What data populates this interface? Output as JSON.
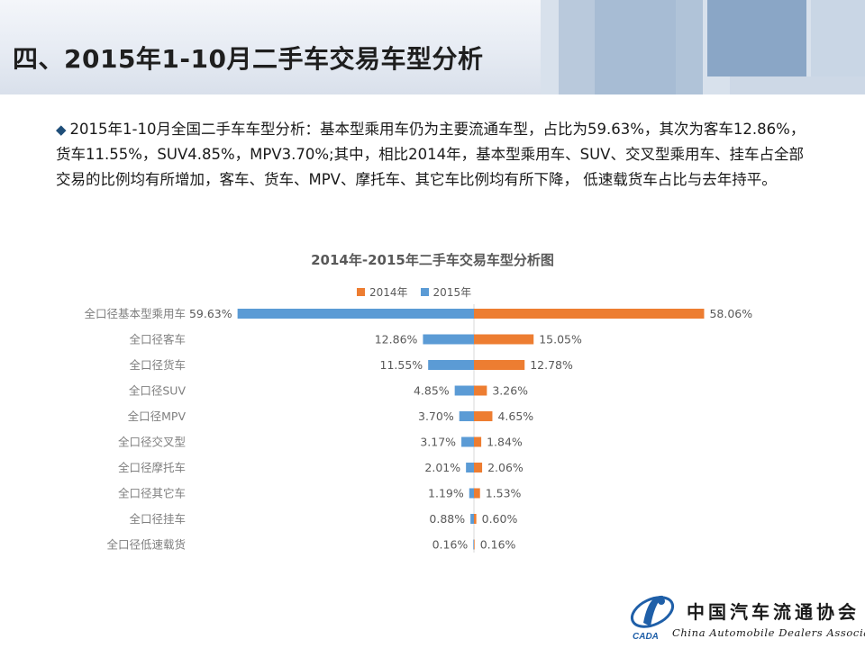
{
  "slide": {
    "title": "四、2015年1-10月二手车交易车型分析",
    "description": "2015年1-10月全国二手车车型分析：基本型乘用车仍为主要流通车型，占比为59.63%，其次为客车12.86%，货车11.55%，SUV4.85%，MPV3.70%;其中，相比2014年，基本型乘用车、SUV、交叉型乘用车、挂车占全部交易的比例均有所增加，客车、货车、MPV、摩托车、其它车比例均有所下降， 低速载货车占比与去年持平。",
    "bullet_icon": "diamond-bullet-icon"
  },
  "logo": {
    "name_cn": "中国汽车流通协会",
    "name_en": "China Automobile Dealers Association",
    "emblem_text": "CADA"
  },
  "colors": {
    "series_2014": "#ed7d31",
    "series_2015": "#5b9bd5",
    "title_text": "#1f1f1f",
    "header_bg": "#e6ebf3"
  },
  "chart_data": {
    "type": "bar",
    "orientation": "horizontal-butterfly",
    "title": "2014年-2015年二手车交易车型分析图",
    "legend_position": "top",
    "categories": [
      "全口径基本型乘用车",
      "全口径客车",
      "全口径货车",
      "全口径SUV",
      "全口径MPV",
      "全口径交叉型",
      "全口径摩托车",
      "全口径其它车",
      "全口径挂车",
      "全口径低速载货"
    ],
    "series": [
      {
        "name": "2014年",
        "side": "right",
        "values": [
          58.06,
          15.05,
          12.78,
          3.26,
          4.65,
          1.84,
          2.06,
          1.53,
          0.6,
          0.16
        ],
        "labels": [
          "58.06%",
          "15.05%",
          "12.78%",
          "3.26%",
          "4.65%",
          "1.84%",
          "2.06%",
          "1.53%",
          "0.60%",
          "0.16%"
        ]
      },
      {
        "name": "2015年",
        "side": "left",
        "values": [
          59.63,
          12.86,
          11.55,
          4.85,
          3.7,
          3.17,
          2.01,
          1.19,
          0.88,
          0.16
        ],
        "labels": [
          "59.63%",
          "12.86%",
          "11.55%",
          "4.85%",
          "3.70%",
          "3.17%",
          "2.01%",
          "1.19%",
          "0.88%",
          "0.16%"
        ]
      }
    ],
    "grid": false
  }
}
